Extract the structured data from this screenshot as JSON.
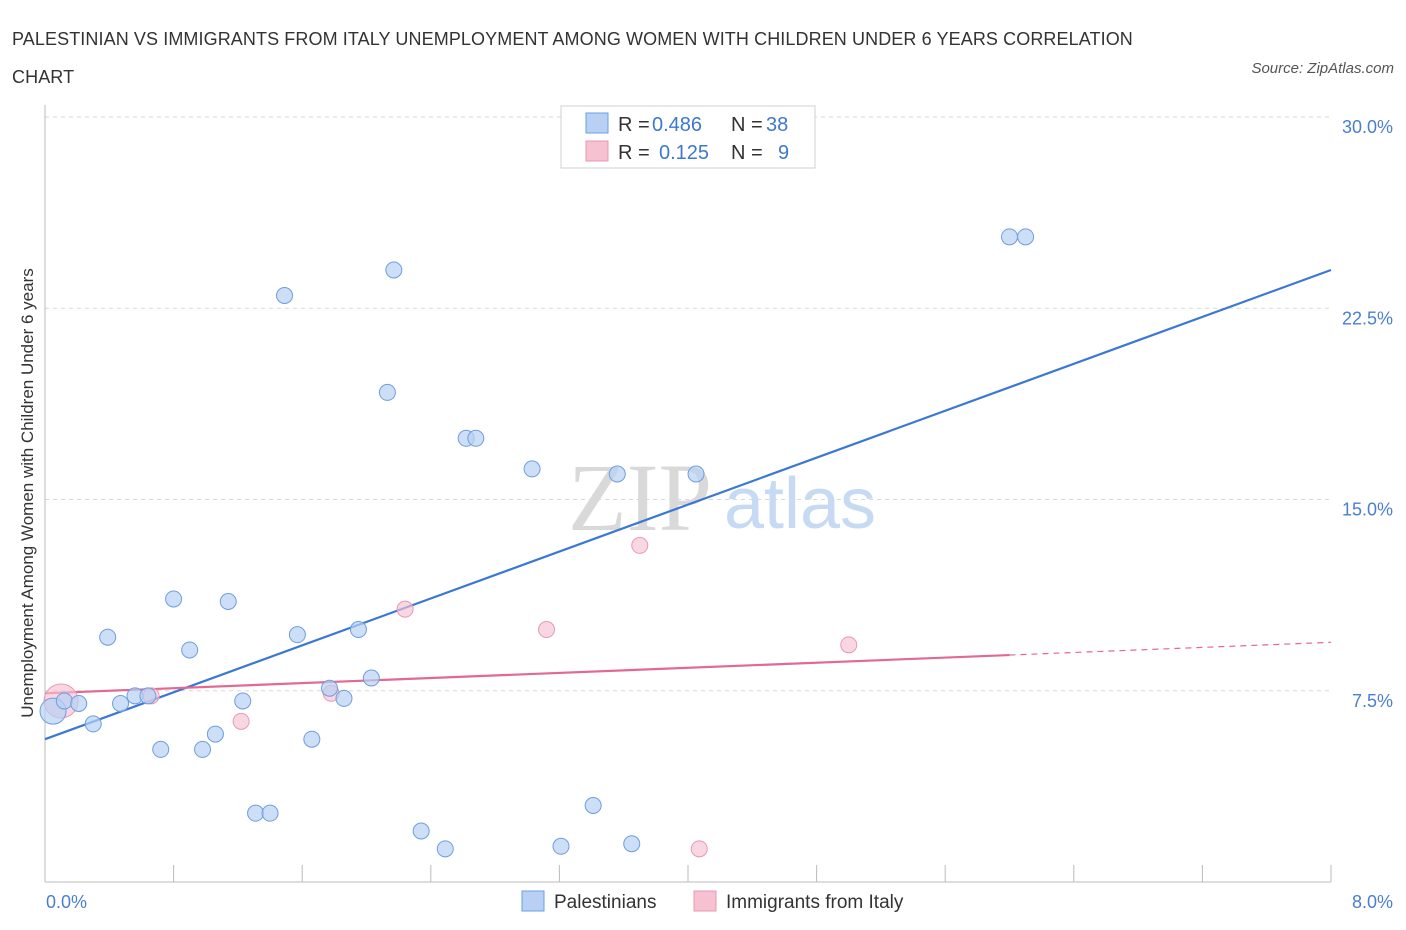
{
  "header": {
    "title": "PALESTINIAN VS IMMIGRANTS FROM ITALY UNEMPLOYMENT AMONG WOMEN WITH CHILDREN UNDER 6 YEARS CORRELATION CHART",
    "source": "Source: ZipAtlas.com"
  },
  "watermark": {
    "zip": "ZIP",
    "atlas": "atlas"
  },
  "colors": {
    "blue": "#3a78d4",
    "blue_fill": "#b8d0f3",
    "pink": "#e2698f",
    "pink_fill": "#f6c2d2",
    "grid": "#d8d8d8",
    "tick_label": "#4a7fd0"
  },
  "legend": {
    "rows": [
      {
        "r_label": "R =",
        "r_value": "0.486",
        "n_label": "N =",
        "n_value": "38"
      },
      {
        "r_label": "R =",
        "r_value": "0.125",
        "n_label": "N =",
        "n_value": "9"
      }
    ]
  },
  "bottom_legend": [
    "Palestinians",
    "Immigrants from Italy"
  ],
  "chart_data": {
    "type": "scatter",
    "title": "PALESTINIAN VS IMMIGRANTS FROM ITALY UNEMPLOYMENT AMONG WOMEN WITH CHILDREN UNDER 6 YEARS CORRELATION CHART",
    "xlabel": "",
    "ylabel": "Unemployment Among Women with Children Under 6 years",
    "xlim": [
      0,
      8
    ],
    "ylim": [
      0,
      30
    ],
    "x_tick_labels": [
      "0.0%",
      "8.0%"
    ],
    "y_ticks": [
      7.5,
      15,
      22.5,
      30
    ],
    "y_tick_labels": [
      "7.5%",
      "15.0%",
      "22.5%",
      "30.0%"
    ],
    "grid": true,
    "series": [
      {
        "name": "Palestinians",
        "color": "#3a78d4",
        "points": [
          [
            0.05,
            6.7
          ],
          [
            0.12,
            7.1
          ],
          [
            0.21,
            7.0
          ],
          [
            0.3,
            6.2
          ],
          [
            0.39,
            9.6
          ],
          [
            0.47,
            7.0
          ],
          [
            0.56,
            7.3
          ],
          [
            0.64,
            7.3
          ],
          [
            0.72,
            5.2
          ],
          [
            0.8,
            11.1
          ],
          [
            0.9,
            9.1
          ],
          [
            0.98,
            5.2
          ],
          [
            1.06,
            5.8
          ],
          [
            1.14,
            11.0
          ],
          [
            1.23,
            7.1
          ],
          [
            1.31,
            2.7
          ],
          [
            1.4,
            2.7
          ],
          [
            1.49,
            23.0
          ],
          [
            1.57,
            9.7
          ],
          [
            1.66,
            5.6
          ],
          [
            1.77,
            7.6
          ],
          [
            1.86,
            7.2
          ],
          [
            1.95,
            9.9
          ],
          [
            2.03,
            8.0
          ],
          [
            2.13,
            19.2
          ],
          [
            2.17,
            24.0
          ],
          [
            2.34,
            2.0
          ],
          [
            2.49,
            1.3
          ],
          [
            2.62,
            17.4
          ],
          [
            2.68,
            17.4
          ],
          [
            3.03,
            16.2
          ],
          [
            3.21,
            1.4
          ],
          [
            3.41,
            3.0
          ],
          [
            3.56,
            16.0
          ],
          [
            3.65,
            1.5
          ],
          [
            4.05,
            16.0
          ],
          [
            6.0,
            25.3
          ],
          [
            6.1,
            25.3
          ]
        ],
        "trend": {
          "x": [
            0.0,
            8.0
          ],
          "y": [
            5.6,
            24.0
          ]
        }
      },
      {
        "name": "Immigrants from Italy",
        "color": "#e2698f",
        "points": [
          [
            0.1,
            7.1
          ],
          [
            0.66,
            7.3
          ],
          [
            1.22,
            6.3
          ],
          [
            1.78,
            7.4
          ],
          [
            2.24,
            10.7
          ],
          [
            3.12,
            9.9
          ],
          [
            3.7,
            13.2
          ],
          [
            4.07,
            1.3
          ],
          [
            5.0,
            9.3
          ]
        ],
        "trend": {
          "x": [
            0.0,
            6.0
          ],
          "y": [
            7.4,
            8.9
          ]
        },
        "trend_extension": {
          "x": [
            6.0,
            8.0
          ],
          "y": [
            8.9,
            9.4
          ]
        }
      }
    ]
  }
}
